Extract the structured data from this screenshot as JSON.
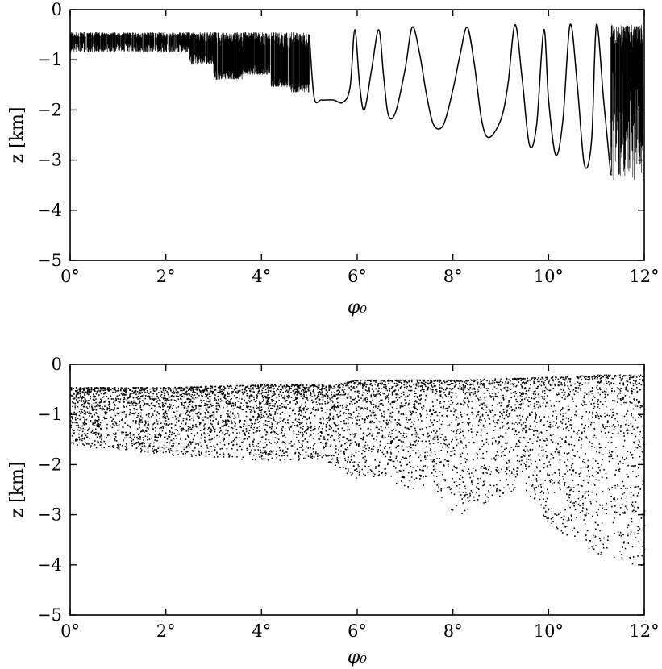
{
  "chart_data": [
    {
      "type": "line",
      "title": "",
      "xlabel": "φ₀",
      "ylabel": "z [km]",
      "xlim": [
        0,
        12
      ],
      "ylim": [
        -5,
        0
      ],
      "x_unit": "°",
      "xticks": [
        "0°",
        "2°",
        "4°",
        "6°",
        "8°",
        "10°",
        "12°"
      ],
      "yticks": [
        "0",
        "−1",
        "−2",
        "−3",
        "−4",
        "−5"
      ],
      "grid": false,
      "series": [
        {
          "x": [
            5.0,
            5.1,
            5.25,
            5.5,
            5.7,
            5.85,
            5.95,
            6.05,
            6.15,
            6.3,
            6.45,
            6.55,
            6.65,
            6.8,
            7.0,
            7.15,
            7.3,
            7.45,
            7.6,
            7.8,
            8.0,
            8.15,
            8.3,
            8.45,
            8.6,
            8.75,
            9.0,
            9.15,
            9.3,
            9.45,
            9.6,
            9.75,
            9.9,
            10.0,
            10.15,
            10.3,
            10.45,
            10.6,
            10.75,
            10.9,
            11.0,
            11.15,
            11.3
          ],
          "y": [
            -0.5,
            -1.75,
            -1.8,
            -1.8,
            -1.85,
            -1.55,
            -0.4,
            -1.5,
            -2.0,
            -1.2,
            -0.4,
            -1.3,
            -2.1,
            -2.05,
            -1.2,
            -0.35,
            -0.85,
            -1.7,
            -2.3,
            -2.3,
            -1.6,
            -0.9,
            -0.35,
            -1.1,
            -2.2,
            -2.55,
            -2.2,
            -1.5,
            -0.3,
            -1.4,
            -2.7,
            -2.3,
            -0.4,
            -1.8,
            -2.9,
            -2.2,
            -0.3,
            -1.5,
            -3.1,
            -2.6,
            -0.3,
            -1.8,
            -3.3
          ]
        }
      ]
    },
    {
      "type": "scatter",
      "title": "",
      "xlabel": "φ₀",
      "ylabel": "z [km]",
      "xlim": [
        0,
        12
      ],
      "ylim": [
        -5,
        0
      ],
      "x_unit": "°",
      "xticks": [
        "0°",
        "2°",
        "4°",
        "6°",
        "8°",
        "10°",
        "12°"
      ],
      "yticks": [
        "0",
        "−1",
        "−2",
        "−3",
        "−4",
        "−5"
      ],
      "grid": false,
      "series": [
        {
          "upper_envelope_x": [
            0,
            2,
            4,
            5.5,
            6,
            8,
            10,
            11,
            12
          ],
          "upper_envelope_y": [
            -0.45,
            -0.45,
            -0.4,
            -0.4,
            -0.3,
            -0.3,
            -0.25,
            -0.2,
            -0.2
          ],
          "lower_envelope_x": [
            0,
            1,
            2,
            3,
            4,
            5,
            5.5,
            6,
            6.5,
            7,
            7.5,
            8,
            8.5,
            9,
            9.5,
            10,
            10.5,
            11,
            11.5,
            12
          ],
          "lower_envelope_y": [
            -1.6,
            -1.7,
            -1.8,
            -1.85,
            -1.9,
            -1.9,
            -2.0,
            -2.3,
            -2.2,
            -2.5,
            -2.4,
            -3.0,
            -2.9,
            -2.6,
            -2.5,
            -3.2,
            -3.5,
            -3.8,
            -3.9,
            -4.05
          ]
        }
      ]
    }
  ]
}
